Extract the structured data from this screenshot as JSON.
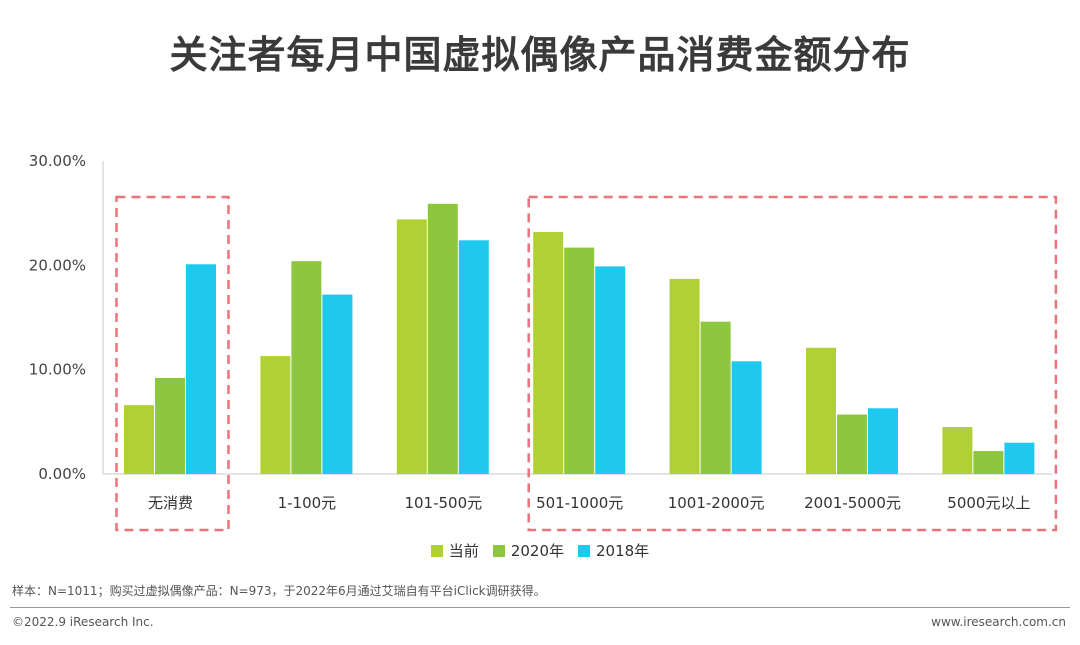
{
  "title": "关注者每月中国虚拟偶像产品消费金额分布",
  "chart_data": {
    "type": "bar",
    "categories": [
      "无消费",
      "1-100元",
      "101-500元",
      "501-1000元",
      "1001-2000元",
      "2001-5000元",
      "5000元以上"
    ],
    "series": [
      {
        "name": "当前",
        "color": "#b0d136",
        "values": [
          6.6,
          11.3,
          24.4,
          23.2,
          18.7,
          12.1,
          4.5
        ]
      },
      {
        "name": "2020年",
        "color": "#8dc63f",
        "values": [
          9.2,
          20.4,
          25.9,
          21.7,
          14.6,
          5.7,
          2.2
        ]
      },
      {
        "name": "2018年",
        "color": "#1fc8ef",
        "values": [
          20.1,
          17.2,
          22.4,
          19.9,
          10.8,
          6.3,
          3.0
        ]
      }
    ],
    "yticks": [
      "0.00%",
      "10.00%",
      "20.00%",
      "30.00%"
    ],
    "ylim": [
      0,
      30
    ],
    "grid": false,
    "legend_position": "bottom",
    "highlight_color": "#e8747c"
  },
  "footnote": "样本：N=1011；购买过虚拟偶像产品：N=973，于2022年6月通过艾瑞自有平台iClick调研获得。",
  "copyright": "©2022.9 iResearch Inc.",
  "site": "www.iresearch.com.cn"
}
